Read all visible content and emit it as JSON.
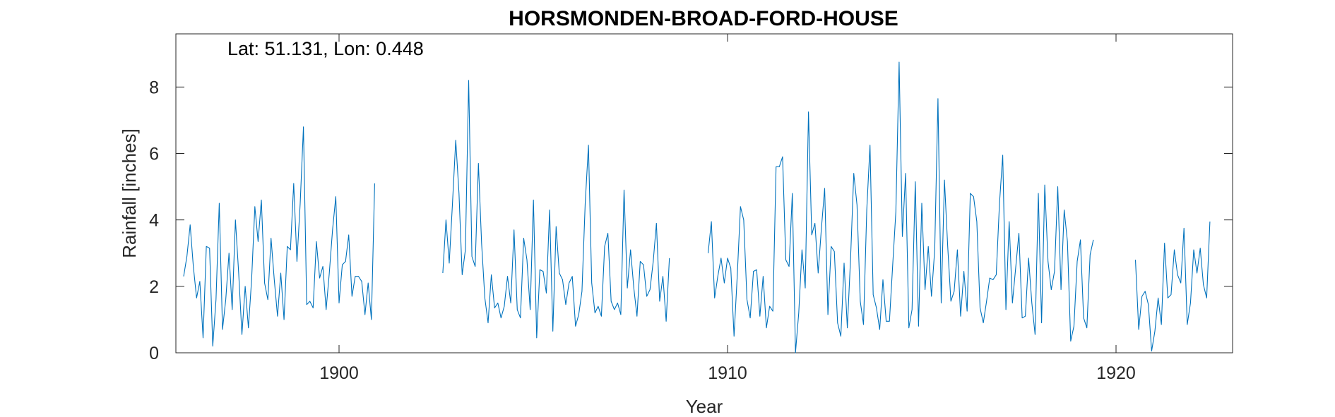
{
  "chart_data": {
    "type": "line",
    "title": "HORSMONDEN-BROAD-FORD-HOUSE",
    "xlabel": "Year",
    "ylabel": "Rainfall [inches]",
    "annotation": "Lat: 51.131, Lon: 0.448",
    "xlim": [
      1895.8,
      1923.0
    ],
    "ylim": [
      0,
      9.6
    ],
    "xticks": [
      1900,
      1910,
      1920
    ],
    "yticks": [
      0,
      2,
      4,
      6,
      8
    ],
    "grid": false,
    "line_color": "#0072BD",
    "axis_color": "#262626",
    "series": [
      {
        "segments": [
          {
            "x_start": 1896.0,
            "step": 0.08333,
            "values": [
              2.3,
              2.9,
              3.85,
              2.6,
              1.65,
              2.15,
              0.45,
              3.2,
              3.15,
              0.2,
              1.6,
              4.5,
              0.7,
              1.6,
              3.0,
              1.3,
              4.0,
              2.4,
              0.55,
              2.0,
              0.75,
              2.2,
              4.4,
              3.35,
              4.6,
              2.1,
              1.6,
              3.45,
              2.2,
              1.1,
              2.4,
              1.0,
              3.2,
              3.1,
              5.1,
              2.75,
              4.5,
              6.8,
              1.45,
              1.55,
              1.35,
              3.35,
              2.25,
              2.6,
              1.3,
              2.4,
              3.7,
              4.7,
              1.5,
              2.65,
              2.75,
              3.55,
              1.7,
              2.3,
              2.3,
              2.15,
              1.15,
              2.1,
              1.0,
              5.1
            ]
          },
          {
            "x_start": 1902.67,
            "step": 0.08333,
            "values": [
              2.4,
              4.0,
              2.7,
              4.5,
              6.4,
              4.8,
              2.35,
              3.1,
              8.2,
              2.9,
              2.6,
              5.7,
              3.3,
              1.65,
              0.9,
              2.35,
              1.35,
              1.5,
              1.05,
              1.4,
              2.3,
              1.5,
              3.7,
              1.3,
              1.05,
              3.45,
              2.8,
              1.3,
              4.6,
              0.45,
              2.5,
              2.45,
              1.8,
              4.3,
              0.65,
              3.8,
              2.4,
              2.2,
              1.45,
              2.1,
              2.3,
              0.8,
              1.15,
              1.85,
              4.5,
              6.25,
              2.1,
              1.2,
              1.4,
              1.1,
              3.2,
              3.6,
              1.55,
              1.3,
              1.5,
              1.15,
              4.9,
              1.95,
              3.1,
              1.95,
              1.1,
              2.75,
              2.65,
              1.7,
              1.9,
              2.75,
              3.9,
              1.55,
              2.3,
              0.95,
              2.85
            ]
          },
          {
            "x_start": 1909.5,
            "step": 0.08333,
            "values": [
              3.0,
              3.95,
              1.65,
              2.3,
              2.85,
              2.1,
              2.85,
              2.55,
              0.5,
              2.3,
              4.4,
              4.0,
              1.6,
              1.05,
              2.45,
              2.5,
              1.1,
              2.3,
              0.75,
              1.4,
              1.25,
              5.6,
              5.6,
              5.9,
              2.8,
              2.6,
              4.8,
              0.0,
              1.2,
              3.1,
              1.95,
              7.25,
              3.55,
              3.9,
              2.4,
              3.75,
              4.95,
              1.15,
              3.2,
              3.05,
              0.9,
              0.5,
              2.7,
              0.75,
              2.85,
              5.4,
              4.45,
              1.55,
              0.85,
              4.3,
              6.25,
              1.75,
              1.35,
              0.7,
              2.2,
              0.95,
              0.95,
              2.6,
              4.25,
              8.75,
              3.5,
              5.4,
              0.75,
              1.3,
              5.15,
              0.8,
              4.5,
              1.9,
              3.2,
              1.7,
              3.1,
              7.65,
              1.5,
              5.2,
              3.2,
              1.55,
              1.85,
              3.1,
              1.1,
              2.45,
              1.25,
              4.8,
              4.7,
              3.95,
              1.35,
              0.9,
              1.55,
              2.25,
              2.2,
              2.35,
              4.5,
              5.95,
              1.3,
              3.95,
              1.5,
              2.55,
              3.6,
              1.05,
              1.1,
              2.85,
              1.5,
              0.55,
              4.8,
              0.9,
              5.05,
              2.75,
              1.9,
              2.45,
              5.0,
              1.9,
              4.3,
              3.35,
              0.35,
              0.8,
              2.75,
              3.4,
              1.05,
              0.75,
              2.95,
              3.4
            ]
          },
          {
            "x_start": 1920.5,
            "step": 0.08333,
            "values": [
              2.8,
              0.7,
              1.7,
              1.85,
              1.45,
              0.05,
              0.65,
              1.65,
              0.85,
              3.3,
              1.65,
              1.75,
              3.1,
              2.35,
              2.1,
              3.75,
              0.85,
              1.5,
              3.1,
              2.4,
              3.15,
              2.05,
              1.65,
              3.95
            ]
          }
        ]
      }
    ]
  }
}
